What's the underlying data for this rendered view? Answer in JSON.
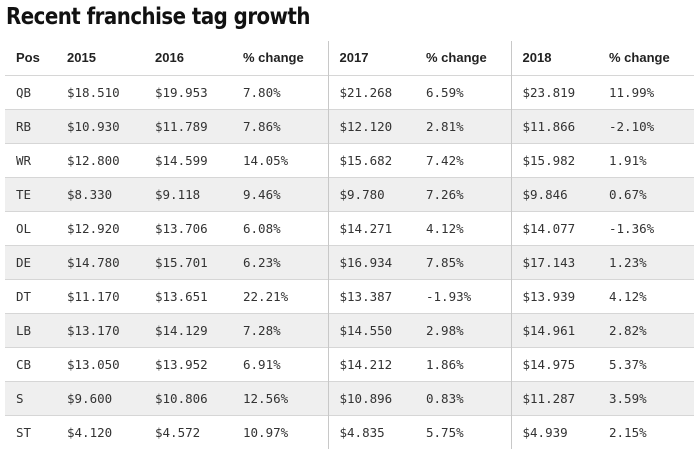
{
  "title": "Recent franchise tag growth",
  "table": {
    "headers": [
      "Pos",
      "2015",
      "2016",
      "% change",
      "2017",
      "% change",
      "2018",
      "% change"
    ],
    "rows": [
      [
        "QB",
        "$18.510",
        "$19.953",
        "7.80%",
        "$21.268",
        "6.59%",
        "$23.819",
        "11.99%"
      ],
      [
        "RB",
        "$10.930",
        "$11.789",
        "7.86%",
        "$12.120",
        "2.81%",
        "$11.866",
        "-2.10%"
      ],
      [
        "WR",
        "$12.800",
        "$14.599",
        "14.05%",
        "$15.682",
        "7.42%",
        "$15.982",
        "1.91%"
      ],
      [
        "TE",
        "$8.330",
        "$9.118",
        "9.46%",
        "$9.780",
        "7.26%",
        "$9.846",
        "0.67%"
      ],
      [
        "OL",
        "$12.920",
        "$13.706",
        "6.08%",
        "$14.271",
        "4.12%",
        "$14.077",
        "-1.36%"
      ],
      [
        "DE",
        "$14.780",
        "$15.701",
        "6.23%",
        "$16.934",
        "7.85%",
        "$17.143",
        "1.23%"
      ],
      [
        "DT",
        "$11.170",
        "$13.651",
        "22.21%",
        "$13.387",
        "-1.93%",
        "$13.939",
        "4.12%"
      ],
      [
        "LB",
        "$13.170",
        "$14.129",
        "7.28%",
        "$14.550",
        "2.98%",
        "$14.961",
        "2.82%"
      ],
      [
        "CB",
        "$13.050",
        "$13.952",
        "6.91%",
        "$14.212",
        "1.86%",
        "$14.975",
        "5.37%"
      ],
      [
        "S",
        "$9.600",
        "$10.806",
        "12.56%",
        "$10.896",
        "0.83%",
        "$11.287",
        "3.59%"
      ],
      [
        "ST",
        "$4.120",
        "$4.572",
        "10.97%",
        "$4.835",
        "5.75%",
        "$4.939",
        "2.15%"
      ]
    ]
  }
}
